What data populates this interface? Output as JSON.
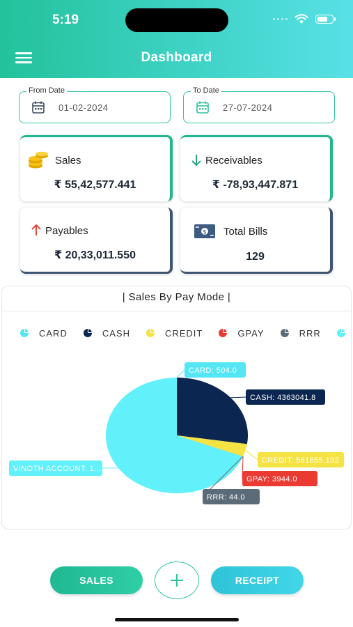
{
  "status_bar": {
    "time": "5:19"
  },
  "header": {
    "title": "Dashboard",
    "menu_icon": "hamburger-icon"
  },
  "filters": {
    "from_date": {
      "label": "From Date",
      "value": "01-02-2024"
    },
    "to_date": {
      "label": "To Date",
      "value": "27-07-2024"
    }
  },
  "stats": {
    "sales": {
      "label": "Sales",
      "value": "₹ 55,42,577.441",
      "icon": "coins-icon"
    },
    "receivables": {
      "label": "Receivables",
      "value": "₹ -78,93,447.871",
      "icon": "arrow-down-icon"
    },
    "payables": {
      "label": "Payables",
      "value": "₹ 20,33,011.550",
      "icon": "arrow-up-icon"
    },
    "total_bills": {
      "label": "Total Bills",
      "value": "129",
      "icon": "money-exchange-icon"
    }
  },
  "chart_title": "| Sales By Pay Mode |",
  "chart_data": {
    "type": "pie",
    "title": "| Sales By Pay Mode |",
    "categories": [
      "CARD",
      "CASH",
      "CREDIT",
      "GPAY",
      "RRR",
      "VINOTH ACCOUNT"
    ],
    "values": [
      504.0,
      4363041.8,
      561655.192,
      3944.0,
      44.0,
      11000000
    ],
    "data_labels": [
      "CARD: 504.0",
      "CASH: 4363041.8",
      "CREDIT: 561655.192",
      "GPAY: 3944.0",
      "RRR: 44.0",
      "VINOTH ACCOUNT: 1..."
    ],
    "colors": [
      "#54e6f5",
      "#0b2650",
      "#f5e243",
      "#ea3a32",
      "#5c6b78",
      "#62f0fb"
    ],
    "legend_visible": [
      "CARD",
      "CASH",
      "CREDIT",
      "GPAY",
      "RRR"
    ],
    "legend_position": "top"
  },
  "actions": {
    "sales_label": "SALES",
    "receipt_label": "RECEIPT",
    "add_icon": "plus-icon"
  }
}
